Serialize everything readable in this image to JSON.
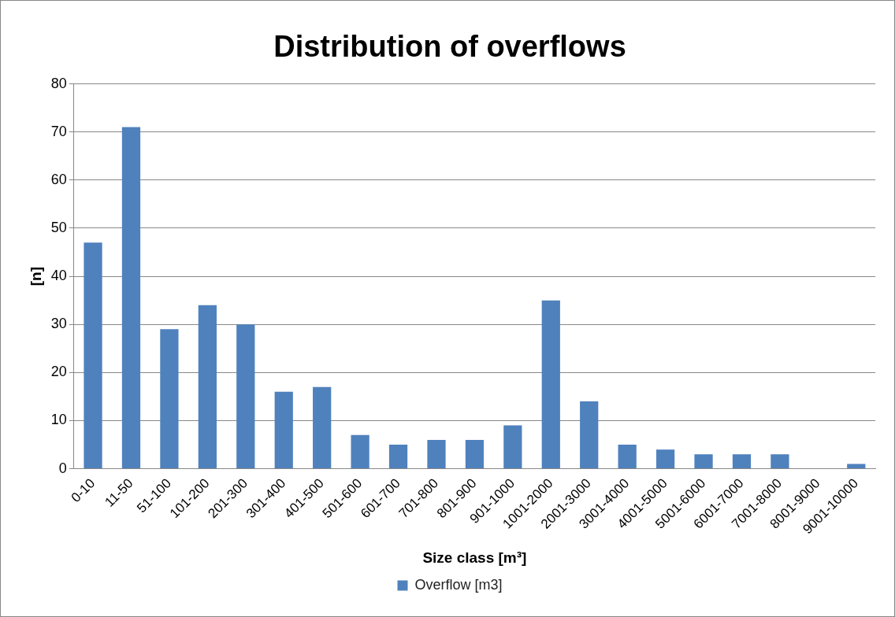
{
  "chart_data": {
    "type": "bar",
    "title": "Distribution of overflows",
    "xlabel": "Size class [m³]",
    "ylabel": "[n]",
    "categories": [
      "0-10",
      "11-50",
      "51-100",
      "101-200",
      "201-300",
      "301-400",
      "401-500",
      "501-600",
      "601-700",
      "701-800",
      "801-900",
      "901-1000",
      "1001-2000",
      "2001-3000",
      "3001-4000",
      "4001-5000",
      "5001-6000",
      "6001-7000",
      "7001-8000",
      "8001-9000",
      "9001-10000"
    ],
    "series": [
      {
        "name": "Overflow [m3]",
        "color": "#4f81bd",
        "values": [
          47,
          71,
          29,
          34,
          30,
          16,
          17,
          7,
          5,
          6,
          6,
          9,
          35,
          14,
          5,
          4,
          3,
          3,
          3,
          0,
          1
        ]
      }
    ],
    "ylim": [
      0,
      80
    ],
    "yticks": [
      0,
      10,
      20,
      30,
      40,
      50,
      60,
      70,
      80
    ],
    "grid": "y",
    "legend": "bottom"
  }
}
